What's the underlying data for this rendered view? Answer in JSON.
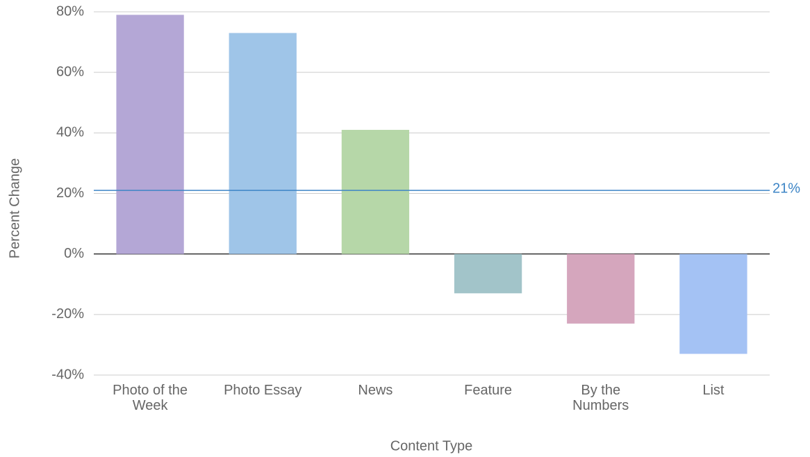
{
  "chart_data": {
    "type": "bar",
    "x_label": "Content Type",
    "y_label": "Percent Change",
    "categories": [
      "Photo of the Week",
      "Photo Essay",
      "News",
      "Feature",
      "By the Numbers",
      "List"
    ],
    "values": [
      79,
      73,
      41,
      -13,
      -23,
      -33
    ],
    "colors": [
      "#b4a7d6",
      "#9fc5e8",
      "#b6d7a8",
      "#a2c4c9",
      "#d5a6bd",
      "#a4c2f4"
    ],
    "ylim": [
      -40,
      80
    ],
    "yticks": [
      {
        "value": -40,
        "label": "-40%"
      },
      {
        "value": -20,
        "label": "-20%"
      },
      {
        "value": 0,
        "label": "0%"
      },
      {
        "value": 20,
        "label": "20%"
      },
      {
        "value": 40,
        "label": "40%"
      },
      {
        "value": 60,
        "label": "60%"
      },
      {
        "value": 80,
        "label": "80%"
      }
    ],
    "grid": true,
    "reference_line": {
      "value": 21,
      "label": "21%",
      "color": "#3d85c6"
    }
  }
}
